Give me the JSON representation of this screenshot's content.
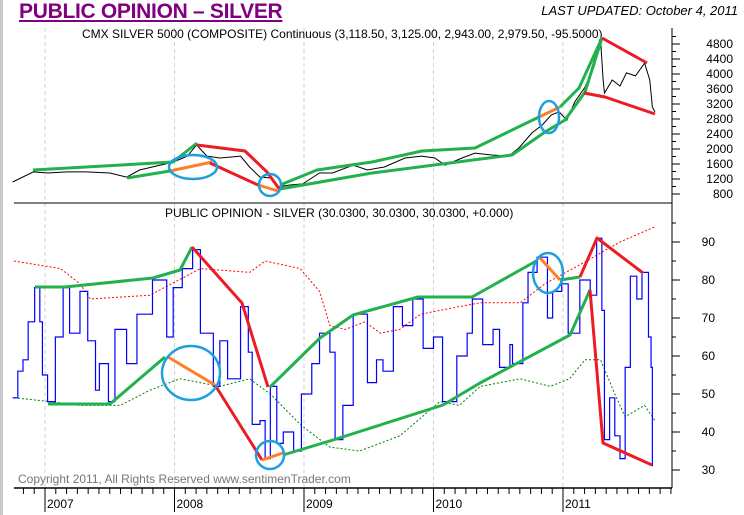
{
  "header": {
    "title": "PUBLIC OPINION – SILVER",
    "last_updated": "LAST UPDATED:  October 4, 2011"
  },
  "copyright": "Copyright 2011, All Rights Reserved  www.sentimenTrader.com",
  "colors": {
    "title": "#800080",
    "price": "#000000",
    "opinion": "#0000ff",
    "upper_band": "#ff0000",
    "lower_band": "#008000",
    "trend_up": "#22b14c",
    "trend_down": "#ed1c24",
    "highlight": "#ff7f27",
    "circle": "#1e9fe0"
  },
  "chart_data": [
    {
      "type": "line",
      "title": "CMX SILVER 5000 (COMPOSITE) Continuous (3,118.50, 3,125.00, 2,943.00, 2,979.50, -95.5000)",
      "x_tick_labels": [
        "2007",
        "2008",
        "2009",
        "2010",
        "2011"
      ],
      "y_tick_labels": [
        "4800",
        "4400",
        "4000",
        "3600",
        "3200",
        "2800",
        "2400",
        "2000",
        "1600",
        "1200",
        "800"
      ],
      "ylim": [
        800,
        4800
      ],
      "grid": "vertical dashed at years",
      "series": [
        {
          "x": [
            2006.75,
            2006.91,
            2007.02,
            2007.17,
            2007.32,
            2007.5,
            2007.63,
            2007.73,
            2007.89,
            2007.99,
            2008.1,
            2008.17,
            2008.25,
            2008.35,
            2008.45,
            2008.51,
            2008.58,
            2008.66,
            2008.74,
            2008.8,
            2008.89,
            2008.99,
            2009.12,
            2009.22,
            2009.38,
            2009.49,
            2009.62,
            2009.78,
            2009.91,
            2010.01,
            2010.09,
            2010.22,
            2010.32,
            2010.45,
            2010.58,
            2010.66,
            2010.76,
            2010.84,
            2010.91,
            2010.97,
            2011.03,
            2011.09,
            2011.17,
            2011.24,
            2011.29,
            2011.31,
            2011.32,
            2011.38,
            2011.44,
            2011.49,
            2011.56,
            2011.63,
            2011.67,
            2011.69,
            2011.71
          ],
          "y": [
            1120,
            1390,
            1360,
            1390,
            1390,
            1360,
            1250,
            1440,
            1570,
            1650,
            1810,
            2110,
            1810,
            1760,
            1790,
            1810,
            1520,
            1250,
            1230,
            990,
            1040,
            1070,
            1360,
            1360,
            1570,
            1440,
            1520,
            1760,
            1810,
            1760,
            1570,
            1760,
            1890,
            1840,
            1810,
            2030,
            2430,
            2640,
            2910,
            2990,
            2770,
            3250,
            3650,
            4190,
            4910,
            3840,
            3490,
            3840,
            3680,
            4030,
            3950,
            4290,
            3840,
            3120,
            2990
          ]
        }
      ]
    },
    {
      "type": "line",
      "title": "PUBLIC OPINION - SILVER (30.0300, 30.0300, 30.0300, +0.000)",
      "x_tick_labels": [
        "2007",
        "2008",
        "2009",
        "2010",
        "2011"
      ],
      "y_tick_labels": [
        "90",
        "80",
        "70",
        "60",
        "50",
        "40",
        "30"
      ],
      "ylim": [
        30,
        90
      ],
      "series": [
        {
          "role": "opinion",
          "x": [
            2006.75,
            2006.79,
            2006.83,
            2006.87,
            2006.92,
            2006.96,
            2006.98,
            2007.02,
            2007.08,
            2007.14,
            2007.19,
            2007.27,
            2007.33,
            2007.39,
            2007.42,
            2007.49,
            2007.54,
            2007.63,
            2007.71,
            2007.79,
            2007.83,
            2007.94,
            2007.99,
            2008.06,
            2008.14,
            2008.2,
            2008.3,
            2008.35,
            2008.41,
            2008.51,
            2008.57,
            2008.6,
            2008.66,
            2008.7,
            2008.74,
            2008.79,
            2008.84,
            2008.92,
            2008.98,
            2009.06,
            2009.12,
            2009.2,
            2009.24,
            2009.3,
            2009.38,
            2009.49,
            2009.56,
            2009.61,
            2009.69,
            2009.76,
            2009.84,
            2009.92,
            2010.0,
            2010.07,
            2010.18,
            2010.26,
            2010.3,
            2010.38,
            2010.46,
            2010.51,
            2010.59,
            2010.61,
            2010.69,
            2010.73,
            2010.8,
            2010.88,
            2010.92,
            2010.99,
            2011.04,
            2011.13,
            2011.21,
            2011.26,
            2011.3,
            2011.32,
            2011.36,
            2011.4,
            2011.44,
            2011.48,
            2011.52,
            2011.57,
            2011.61,
            2011.66,
            2011.68,
            2011.69
          ],
          "y": [
            49,
            56,
            59,
            69,
            78,
            69,
            55,
            48,
            65,
            78,
            66,
            77,
            64,
            51,
            58,
            48,
            67,
            58,
            71,
            71,
            80,
            65,
            78,
            83,
            88,
            66,
            52,
            64,
            54,
            73,
            61,
            42,
            43,
            33,
            52,
            37,
            40,
            35,
            50,
            58,
            66,
            61,
            38,
            47,
            71,
            53,
            59,
            56,
            73,
            68,
            75,
            62,
            65,
            48,
            60,
            66,
            75,
            63,
            67,
            57,
            63,
            58,
            74,
            82,
            86,
            70,
            77,
            79,
            66,
            80,
            76,
            91,
            72,
            38,
            49,
            39,
            33,
            57,
            81,
            75,
            82,
            65,
            57,
            31
          ]
        },
        {
          "role": "upper_band",
          "x": [
            2006.76,
            2007.12,
            2007.27,
            2007.35,
            2007.81,
            2008.2,
            2008.58,
            2008.7,
            2008.97,
            2009.12,
            2009.2,
            2009.32,
            2009.47,
            2009.59,
            2009.74,
            2009.9,
            2010.2,
            2010.36,
            2010.67,
            2010.86,
            2011.13,
            2011.44,
            2011.71
          ],
          "y": [
            85,
            83,
            79,
            75,
            76,
            83,
            82,
            85,
            83,
            77,
            68,
            67,
            69,
            66,
            67,
            71,
            73,
            74,
            74,
            79,
            84,
            90,
            94
          ]
        },
        {
          "role": "lower_band",
          "x": [
            2006.76,
            2007.04,
            2007.27,
            2007.58,
            2007.81,
            2008.04,
            2008.35,
            2008.58,
            2008.74,
            2008.97,
            2009.2,
            2009.43,
            2009.74,
            2010.05,
            2010.2,
            2010.36,
            2010.67,
            2010.9,
            2011.05,
            2011.17,
            2011.29,
            2011.4,
            2011.48,
            2011.63,
            2011.71
          ],
          "y": [
            49,
            48,
            47,
            47,
            51,
            54,
            52,
            54,
            50,
            42,
            36,
            35,
            39,
            48,
            47,
            52,
            54,
            52,
            54,
            59,
            59,
            50,
            44,
            47,
            43
          ]
        }
      ]
    }
  ]
}
